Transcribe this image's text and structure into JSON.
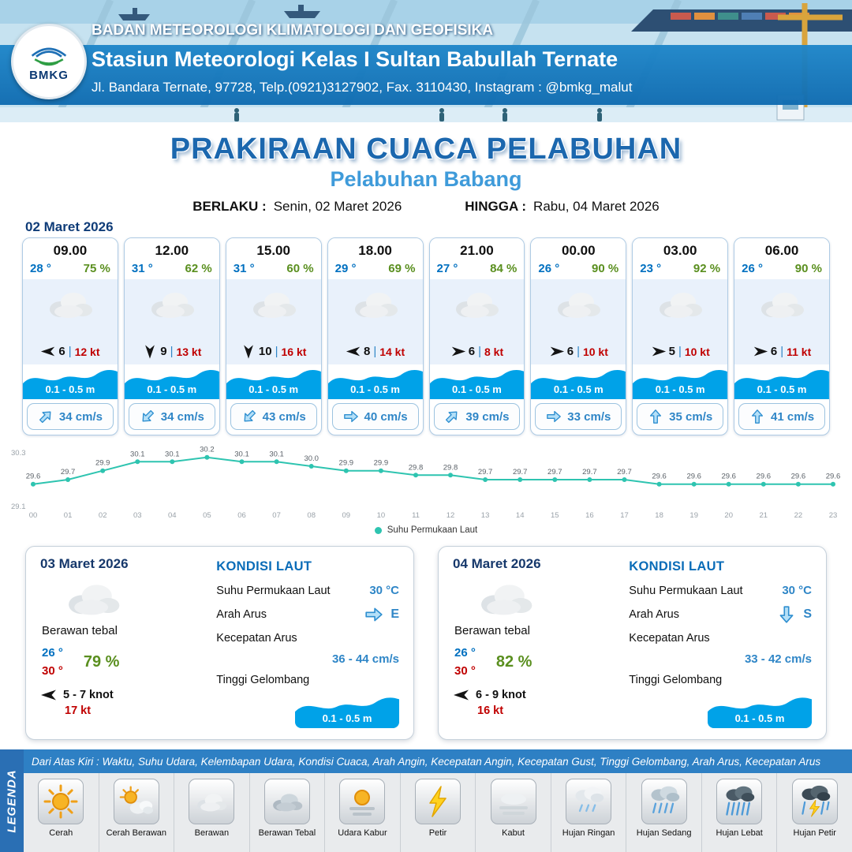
{
  "header": {
    "logo": "BMKG",
    "org": "BADAN METEOROLOGI KLIMATOLOGI DAN GEOFISIKA",
    "station": "Stasiun Meteorologi Kelas I Sultan Babullah Ternate",
    "address": "Jl. Bandara Ternate, 97728, Telp.(0921)3127902, Fax. 3110430, Instagram : @bmkg_malut"
  },
  "title": {
    "main": "PRAKIRAAN CUACA PELABUHAN",
    "sub": "Pelabuhan Babang",
    "berlaku_label": "BERLAKU :",
    "berlaku_value": "Senin, 02 Maret 2026",
    "hingga_label": "HINGGA :",
    "hingga_value": "Rabu, 04 Maret 2026"
  },
  "forecast": {
    "date": "02 Maret 2026",
    "sep": "|",
    "cards": [
      {
        "time": "09.00",
        "temp": "28 °",
        "rh": "75 %",
        "icon": "cloud",
        "wind_dir": "W",
        "wind_speed": "6",
        "gust": "12 kt",
        "wave": "0.1 - 0.5 m",
        "current_dir": "NE",
        "current_speed": "34 cm/s"
      },
      {
        "time": "12.00",
        "temp": "31 °",
        "rh": "62 %",
        "icon": "cloud",
        "wind_dir": "S",
        "wind_speed": "9",
        "gust": "13 kt",
        "wave": "0.1 - 0.5 m",
        "current_dir": "SW",
        "current_speed": "34 cm/s"
      },
      {
        "time": "15.00",
        "temp": "31 °",
        "rh": "60 %",
        "icon": "cloud",
        "wind_dir": "S",
        "wind_speed": "10",
        "gust": "16 kt",
        "wave": "0.1 - 0.5 m",
        "current_dir": "SW",
        "current_speed": "43 cm/s"
      },
      {
        "time": "18.00",
        "temp": "29 °",
        "rh": "69 %",
        "icon": "cloud",
        "wind_dir": "W",
        "wind_speed": "8",
        "gust": "14 kt",
        "wave": "0.1 - 0.5 m",
        "current_dir": "E",
        "current_speed": "40 cm/s"
      },
      {
        "time": "21.00",
        "temp": "27 °",
        "rh": "84 %",
        "icon": "cloud",
        "wind_dir": "E",
        "wind_speed": "6",
        "gust": "8 kt",
        "wave": "0.1 - 0.5 m",
        "current_dir": "NE",
        "current_speed": "39 cm/s"
      },
      {
        "time": "00.00",
        "temp": "26 °",
        "rh": "90 %",
        "icon": "cloud",
        "wind_dir": "E",
        "wind_speed": "6",
        "gust": "10 kt",
        "wave": "0.1 - 0.5 m",
        "current_dir": "E",
        "current_speed": "33 cm/s"
      },
      {
        "time": "03.00",
        "temp": "23 °",
        "rh": "92 %",
        "icon": "cloud",
        "wind_dir": "E",
        "wind_speed": "5",
        "gust": "10 kt",
        "wave": "0.1 - 0.5 m",
        "current_dir": "N",
        "current_speed": "35 cm/s"
      },
      {
        "time": "06.00",
        "temp": "26 °",
        "rh": "90 %",
        "icon": "cloud",
        "wind_dir": "E",
        "wind_speed": "6",
        "gust": "11 kt",
        "wave": "0.1 - 0.5 m",
        "current_dir": "N",
        "current_speed": "41 cm/s"
      }
    ]
  },
  "chart_data": {
    "type": "line",
    "series_name": "Suhu Permukaan Laut",
    "x": [
      "00",
      "01",
      "02",
      "03",
      "04",
      "05",
      "06",
      "07",
      "08",
      "09",
      "10",
      "11",
      "12",
      "13",
      "14",
      "15",
      "16",
      "17",
      "18",
      "19",
      "20",
      "21",
      "22",
      "23"
    ],
    "values": [
      29.6,
      29.7,
      29.9,
      30.1,
      30.1,
      30.2,
      30.1,
      30.1,
      30.0,
      29.9,
      29.9,
      29.8,
      29.8,
      29.7,
      29.7,
      29.7,
      29.7,
      29.7,
      29.6,
      29.6,
      29.6,
      29.6,
      29.6,
      29.6
    ],
    "ylim": [
      29.1,
      30.3
    ],
    "y_ticks": [
      "30.3",
      "29.1"
    ],
    "line_color": "#2ec4b0",
    "grid": false,
    "legend_position": "bottom"
  },
  "day_cards": [
    {
      "date": "03 Maret 2026",
      "icon": "cloud",
      "condition": "Berawan tebal",
      "temp_min": "26 °",
      "temp_max": "30 °",
      "rh": "79 %",
      "wind_dir": "W",
      "wind_range": "5 - 7 knot",
      "gust": "17 kt",
      "sea_title": "KONDISI LAUT",
      "sst_label": "Suhu Permukaan Laut",
      "sst_value": "30 °C",
      "current_dir_label": "Arah Arus",
      "current_dir": "E",
      "current_speed_label": "Kecepatan Arus",
      "current_speed": "36 - 44 cm/s",
      "wave_label": "Tinggi Gelombang",
      "wave_value": "0.1 - 0.5 m"
    },
    {
      "date": "04 Maret 2026",
      "icon": "cloud",
      "condition": "Berawan tebal",
      "temp_min": "26 °",
      "temp_max": "30 °",
      "rh": "82 %",
      "wind_dir": "W",
      "wind_range": "6 - 9 knot",
      "gust": "16 kt",
      "sea_title": "KONDISI LAUT",
      "sst_label": "Suhu Permukaan Laut",
      "sst_value": "30 °C",
      "current_dir_label": "Arah Arus",
      "current_dir": "S",
      "current_speed_label": "Kecepatan Arus",
      "current_speed": "33 - 42 cm/s",
      "wave_label": "Tinggi Gelombang",
      "wave_value": "0.1 - 0.5 m"
    }
  ],
  "legend": {
    "tab": "LEGENDA",
    "description": "Dari Atas Kiri : Waktu, Suhu Udara, Kelembapan Udara, Kondisi Cuaca, Arah Angin, Kecepatan Angin, Kecepatan Gust, Tinggi Gelombang, Arah Arus, Kecepatan Arus",
    "items": [
      {
        "label": "Cerah",
        "icon": "sun"
      },
      {
        "label": "Cerah Berawan",
        "icon": "sun-cloud"
      },
      {
        "label": "Berawan",
        "icon": "cloud"
      },
      {
        "label": "Berawan Tebal",
        "icon": "cloud-thick"
      },
      {
        "label": "Udara Kabur",
        "icon": "haze"
      },
      {
        "label": "Petir",
        "icon": "lightning"
      },
      {
        "label": "Kabut",
        "icon": "fog"
      },
      {
        "label": "Hujan Ringan",
        "icon": "rain-light"
      },
      {
        "label": "Hujan Sedang",
        "icon": "rain-moderate"
      },
      {
        "label": "Hujan Lebat",
        "icon": "rain-heavy"
      },
      {
        "label": "Hujan Petir",
        "icon": "thunderstorm"
      }
    ]
  },
  "colors": {
    "band_blue": "#1173b8",
    "title_blue": "#1b67ae",
    "sub_blue": "#3f9bda",
    "temp_blue": "#0070c0",
    "rh_green": "#5a8f1f",
    "gust_red": "#c00000",
    "wave_blue": "#00a2e8",
    "current_blue": "#2f86c7",
    "chart_line": "#2ec4b0",
    "legend_bar_blue": "#2e80c4"
  }
}
